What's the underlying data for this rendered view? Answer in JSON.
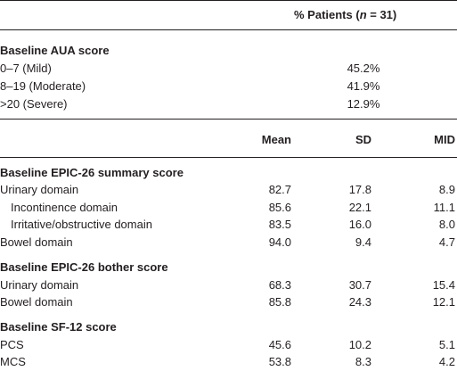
{
  "header": {
    "label_parts": [
      "% Patients (",
      "n",
      " = 31)"
    ]
  },
  "aua": {
    "title": "Baseline AUA score",
    "rows": [
      [
        "0–7 (Mild)",
        "45.2%"
      ],
      [
        "8–19 (Moderate)",
        "41.9%"
      ],
      [
        ">20 (Severe)",
        "12.9%"
      ]
    ]
  },
  "columns": [
    "Mean",
    "SD",
    "MID"
  ],
  "sections": [
    {
      "title": "Baseline EPIC-26 summary score",
      "rows": [
        {
          "label": "Urinary domain",
          "indent": false,
          "values": [
            "82.7",
            "17.8",
            "8.9"
          ]
        },
        {
          "label": "Incontinence domain",
          "indent": true,
          "values": [
            "85.6",
            "22.1",
            "11.1"
          ]
        },
        {
          "label": "Irritative/obstructive domain",
          "indent": true,
          "values": [
            "83.5",
            "16.0",
            "8.0"
          ]
        },
        {
          "label": "Bowel domain",
          "indent": false,
          "values": [
            "94.0",
            "9.4",
            "4.7"
          ]
        }
      ]
    },
    {
      "title": "Baseline EPIC-26 bother score",
      "rows": [
        {
          "label": "Urinary domain",
          "indent": false,
          "values": [
            "68.3",
            "30.7",
            "15.4"
          ]
        },
        {
          "label": "Bowel domain",
          "indent": false,
          "values": [
            "85.8",
            "24.3",
            "12.1"
          ]
        }
      ]
    },
    {
      "title": "Baseline SF-12 score",
      "rows": [
        {
          "label": "PCS",
          "indent": false,
          "values": [
            "45.6",
            "10.2",
            "5.1"
          ]
        },
        {
          "label": "MCS",
          "indent": false,
          "values": [
            "53.8",
            "8.3",
            "4.2"
          ]
        }
      ]
    }
  ]
}
